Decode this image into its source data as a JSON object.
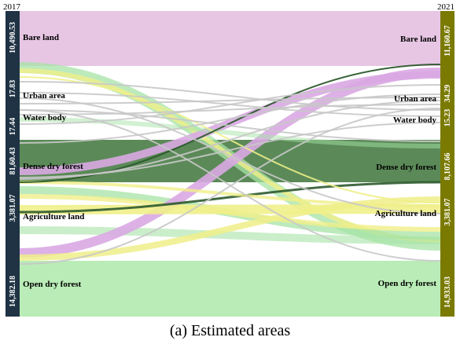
{
  "chart_data": {
    "type": "sankey",
    "caption": "(a) Estimated areas",
    "years": {
      "left": "2017",
      "right": "2021"
    },
    "colors": {
      "left_bar": "#1f3344",
      "right_bar": "#7a7a00",
      "link_gray": "#c8c8c8",
      "link_dark": "#2d5a2d"
    },
    "categories": [
      {
        "id": "bare",
        "label": "Bare land",
        "color": "#e7c6e3",
        "link": "#d9a8e3",
        "left_value": "10,490.53",
        "right_value": "11,160.67"
      },
      {
        "id": "urban",
        "label": "Urban area",
        "color": "#ffffff",
        "link": "#d0d0d0",
        "left_value": "17.83",
        "right_value": "34.29"
      },
      {
        "id": "water",
        "label": "Water body",
        "color": "#ffffff",
        "link": "#d0d0d0",
        "left_value": "17.44",
        "right_value": "15.23"
      },
      {
        "id": "dense",
        "label": "Dense dry forest",
        "color": "#5b8a58",
        "link": "#3f6e3f",
        "left_value": "81,60.43",
        "right_value": "8,107.66"
      },
      {
        "id": "agri",
        "label": "Agriculture land",
        "color": "#ffffff",
        "link": "#f0ef8a",
        "left_value": "3,381.07",
        "right_value": "3,381.07"
      },
      {
        "id": "open",
        "label": "Open dry forest",
        "color": "#b9ecb6",
        "link": "#a6e3a6",
        "left_value": "14,382.18",
        "right_value": "14,933.03"
      }
    ]
  }
}
